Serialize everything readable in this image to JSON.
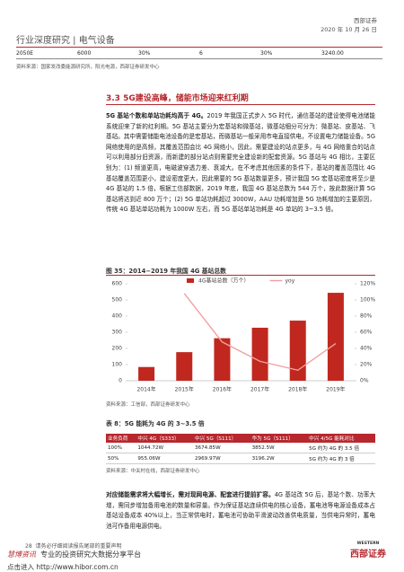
{
  "header": {
    "section": "行业深度研究 | 电气设备",
    "company": "西部证券",
    "date": "2020 年 10 月 26 日"
  },
  "top_table": {
    "row": [
      "2050E",
      "6000",
      "30%",
      "6",
      "30%",
      "3240.00"
    ],
    "source": "资料来源：国家发改委能源研究所，阳光电源，西部证券研发中心"
  },
  "section_title": "3.3 5G建设高峰，储能市场迎来红利期",
  "paragraph1": {
    "lead": "5G 基站个数和单站功耗均高于 4G。",
    "body": "2019 年我国正式步入 5G 时代，通信基站的建设使得电池储能系统迎来了新的红利期。5G 基站主要分为宏基站和微基站，微基站细分可分为：微基站、皮基站、飞基站。其中需要储能电池设备的是宏基站，而微基站一般采用市电直接供电，不设置电力储能设备。5G 网络使用的是高频，其覆盖范围会比 4G 网络小，因此，需要建设的站点更多，与 4G 网络重合的站点可以利用部分旧资源，而新建的部分站点则需要完全建设新的配套资源。5G 基站与 4G 相比，主要区别为：(1) 频道更高，电磁波穿透力差、衰减大。在不考虑其他因素的条件下，基站的覆盖范围比 4G 基站覆盖范围更小，建设密度更大，因此需要的 5G 基站数量更多，预计我国 5G 宏基站密度将至少是 4G 基站的 1.5 倍，根据工信部数据，2019 年底，我国 4G 基站总数为 544 万个，按此数据计算 5G 基站将达到近 800 万个；(2) 5G 单站功耗超过 3000W，AAU 功耗增加是 5G 功耗增加的主要原因，传统 4G 基站单站功耗为 1000W 左右，而 5G 基站单站功耗是 4G 单站的 3~3.5 倍。"
  },
  "figure": {
    "caption": "图 35：2014−2019 年我国 4G 基站总数",
    "source": "资料来源：工信部，西部证券研发中心",
    "chart_data": {
      "type": "bar",
      "categories": [
        "2014年",
        "2015年",
        "2016年",
        "2017年",
        "2018年",
        "2019年"
      ],
      "series": [
        {
          "name": "4G基站总数（万个）",
          "type": "bar",
          "color": "#c0281f",
          "values": [
            85,
            177,
            263,
            328,
            372,
            544
          ]
        },
        {
          "name": "yoy",
          "type": "line",
          "axis": "y2",
          "color": "#f2a0a0",
          "values": [
            null,
            108,
            48,
            24,
            13,
            46
          ]
        }
      ],
      "ylim": [
        0,
        600
      ],
      "yticks": [
        0,
        100,
        200,
        300,
        400,
        500,
        600
      ],
      "y2lim": [
        0,
        120
      ],
      "y2ticks": [
        {
          "value": 0,
          "label": "0%"
        },
        {
          "value": 20,
          "label": "20%"
        },
        {
          "value": 40,
          "label": "40%"
        },
        {
          "value": 60,
          "label": "60%"
        },
        {
          "value": 80,
          "label": "80%"
        },
        {
          "value": 100,
          "label": "100%"
        },
        {
          "value": 120,
          "label": "120%"
        }
      ],
      "grid": false
    }
  },
  "table8": {
    "caption": "表 8：5G 能耗为 4G 的 3~3.5 倍",
    "header": [
      "业务负荷",
      "中兴 4G（S333）",
      "中兴 5G（S111）",
      "华为 5G（S111）",
      "中兴 4/5G 能耗对比"
    ],
    "rows": [
      [
        "100%",
        "1044.72W",
        "3674.85W",
        "3852.5W",
        "5G 约为 4G 的 3.5 倍"
      ],
      [
        "50%",
        "955.06W",
        "2969.97W",
        "3196.2W",
        "5G 约为 4G 的 3 倍"
      ]
    ],
    "source": "资料来源：中关村在线，西部证券研发中心"
  },
  "paragraph2": {
    "lead": "对应储能需求将大幅增长，需对现网电源、配套进行提前扩容。",
    "body": "4G 基站改 5G 后，基站个数、功率大增，需同步增加备用电池的数量和容量。作为保证基站连续供电的核心设备，蓄电池等电源设备成本占基站设备成本 40%以上，当正常供电时，蓄电池可协助平滑波动改善供电质量，当供电异常时，蓄电池可作备用电源供电。"
  },
  "footer": {
    "page": "28",
    "notice": "请务必仔细阅读报告尾部的重要声明",
    "brand": "慧博资讯",
    "tagline": "专业的投资研究大数据分享平台",
    "link": "点击进入 http://www.hibor.com.cn",
    "logo_en": "WESTERN",
    "logo_cn": "西部证券"
  }
}
